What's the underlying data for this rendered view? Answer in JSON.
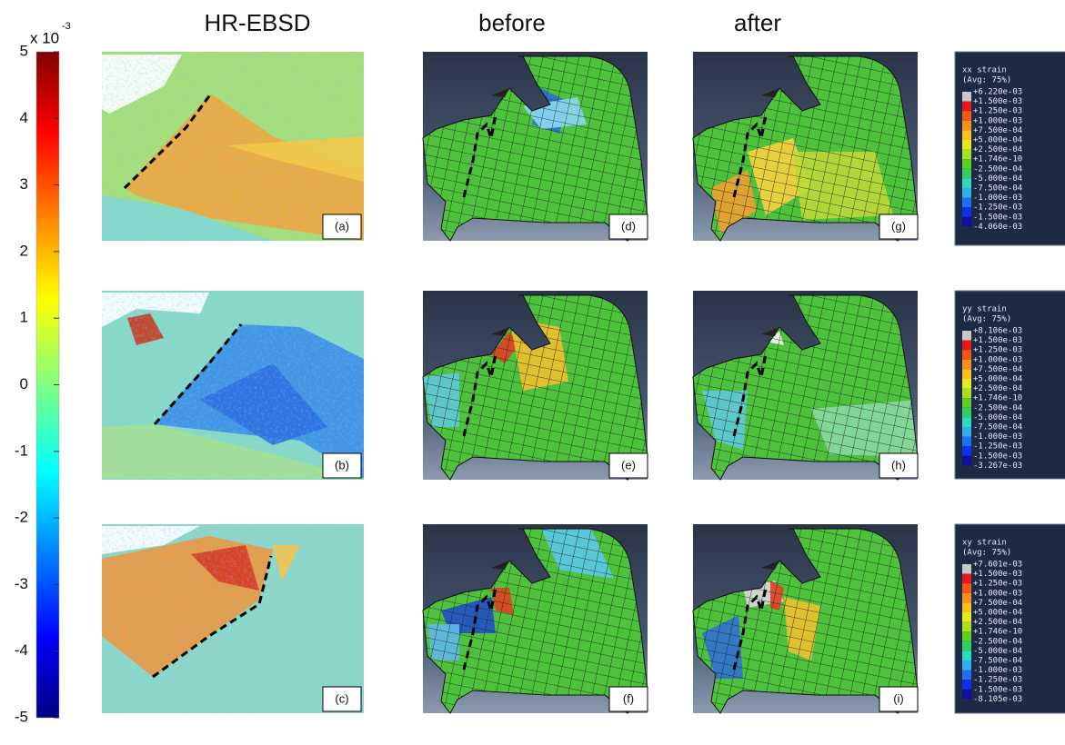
{
  "column_headers": [
    "HR-EBSD",
    "before",
    "after"
  ],
  "colorbar": {
    "multiplier": "x 10",
    "exponent": "-3",
    "ticks": [
      5,
      4,
      3,
      2,
      1,
      0,
      -1,
      -2,
      -3,
      -4,
      -5
    ]
  },
  "panels": [
    [
      "(a)",
      "(d)",
      "(g)"
    ],
    [
      "(b)",
      "(e)",
      "(h)"
    ],
    [
      "(c)",
      "(f)",
      "(i)"
    ]
  ],
  "legends": [
    {
      "title": "xx strain",
      "subtitle": "(Avg: 75%)",
      "levels": [
        "+6.220e-03",
        "+1.500e-03",
        "+1.250e-03",
        "+1.000e-03",
        "+7.500e-04",
        "+5.000e-04",
        "+2.500e-04",
        "+1.746e-10",
        "-2.500e-04",
        "-5.000e-04",
        "-7.500e-04",
        "-1.000e-03",
        "-1.250e-03",
        "-1.500e-03",
        "-4.060e-03"
      ]
    },
    {
      "title": "yy strain",
      "subtitle": "(Avg: 75%)",
      "levels": [
        "+8.106e-03",
        "+1.500e-03",
        "+1.250e-03",
        "+1.000e-03",
        "+7.500e-04",
        "+5.000e-04",
        "+2.500e-04",
        "+1.746e-10",
        "-2.500e-04",
        "-5.000e-04",
        "-7.500e-04",
        "-1.000e-03",
        "-1.250e-03",
        "-1.500e-03",
        "-3.267e-03"
      ]
    },
    {
      "title": "xy strain",
      "subtitle": "(Avg: 75%)",
      "levels": [
        "+7.601e-03",
        "+1.500e-03",
        "+1.250e-03",
        "+1.000e-03",
        "+7.500e-04",
        "+5.000e-04",
        "+2.500e-04",
        "+1.746e-10",
        "-2.500e-04",
        "-5.000e-04",
        "-7.500e-04",
        "-1.000e-03",
        "-1.250e-03",
        "-1.500e-03",
        "-8.105e-03"
      ]
    }
  ]
}
